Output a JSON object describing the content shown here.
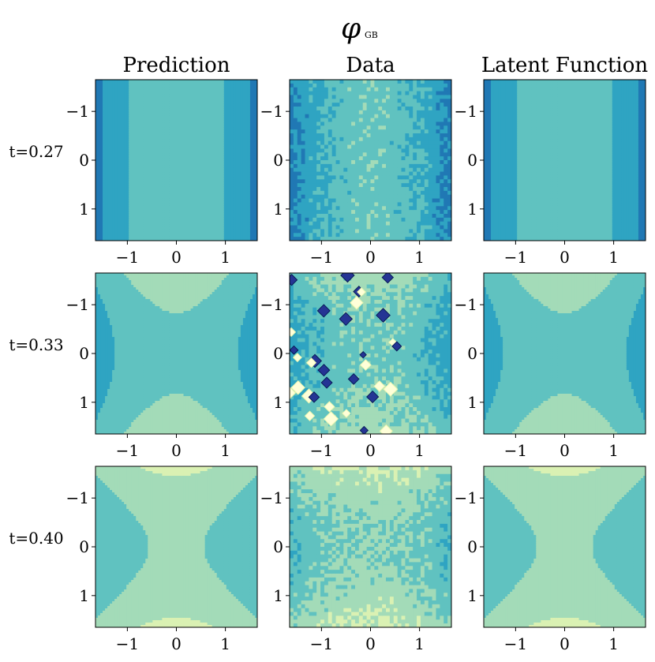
{
  "figure": {
    "title": "φ",
    "title_sub": "GB",
    "column_titles": [
      "Prediction",
      "Data",
      "Latent Function"
    ],
    "row_labels": [
      "t=0.27",
      "t=0.33",
      "t=0.40"
    ],
    "colormap_stops": [
      "#ffffd9",
      "#edf8b1",
      "#c7e9b4",
      "#7fcdbb",
      "#41b6c4",
      "#1d91c0",
      "#225ea8",
      "#253494",
      "#081d58"
    ]
  },
  "chart_data": {
    "type": "heatmap",
    "subtype": "filled-contour grid",
    "rows": [
      "t=0.27",
      "t=0.33",
      "t=0.40"
    ],
    "columns": [
      "Prediction",
      "Data",
      "Latent Function"
    ],
    "xlim": [
      -1.65,
      1.65
    ],
    "ylim": [
      -1.65,
      1.65
    ],
    "xticks": [
      -1,
      0,
      1
    ],
    "yticks": [
      -1,
      0,
      1
    ],
    "xtick_labels": [
      "−1",
      "0",
      "1"
    ],
    "ytick_labels": [
      "1",
      "0",
      "−1"
    ],
    "contour_levels": 8
  }
}
